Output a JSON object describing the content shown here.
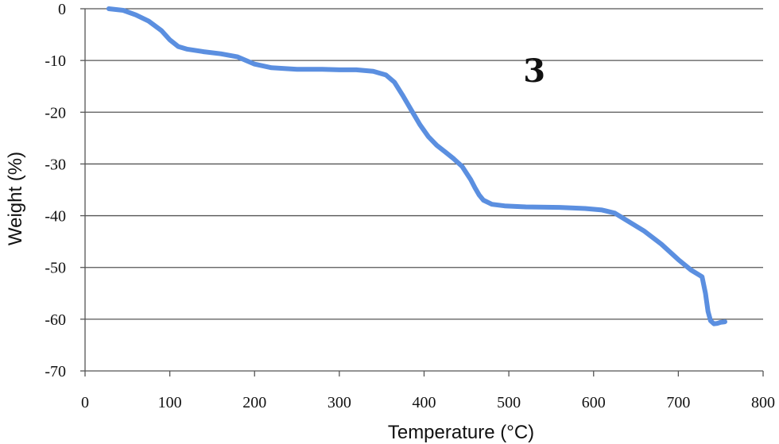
{
  "chart_data": {
    "type": "line",
    "title": "",
    "xlabel": "Temperature (°C)",
    "ylabel": "Weight (%)",
    "xlim": [
      0,
      800
    ],
    "ylim": [
      -70,
      0
    ],
    "xticks": [
      0,
      100,
      200,
      300,
      400,
      500,
      600,
      700,
      800
    ],
    "yticks": [
      0,
      -10,
      -20,
      -30,
      -40,
      -50,
      -60,
      -70
    ],
    "grid": "horizontal",
    "legend": "none",
    "annotations": [
      {
        "text": "3",
        "x": 530,
        "y": -12
      }
    ],
    "series": [
      {
        "color": "#5b8fe0",
        "x": [
          28,
          45,
          60,
          75,
          90,
          100,
          110,
          120,
          140,
          160,
          180,
          200,
          220,
          250,
          280,
          300,
          320,
          340,
          355,
          365,
          375,
          385,
          395,
          405,
          415,
          425,
          435,
          445,
          455,
          460,
          465,
          470,
          480,
          495,
          520,
          560,
          590,
          610,
          625,
          640,
          660,
          680,
          700,
          715,
          728,
          732,
          735,
          738,
          742,
          746,
          750,
          755
        ],
        "y": [
          0,
          -0.3,
          -1.2,
          -2.4,
          -4.2,
          -6.0,
          -7.3,
          -7.8,
          -8.3,
          -8.7,
          -9.3,
          -10.7,
          -11.4,
          -11.7,
          -11.7,
          -11.8,
          -11.8,
          -12.1,
          -12.8,
          -14.2,
          -16.8,
          -19.6,
          -22.4,
          -24.7,
          -26.4,
          -27.7,
          -29.0,
          -30.5,
          -33.0,
          -34.6,
          -36.0,
          -37.0,
          -37.8,
          -38.1,
          -38.3,
          -38.4,
          -38.6,
          -38.9,
          -39.5,
          -41.0,
          -43.0,
          -45.5,
          -48.5,
          -50.5,
          -51.8,
          -55.0,
          -58.5,
          -60.3,
          -60.9,
          -60.8,
          -60.6,
          -60.5
        ]
      }
    ]
  }
}
